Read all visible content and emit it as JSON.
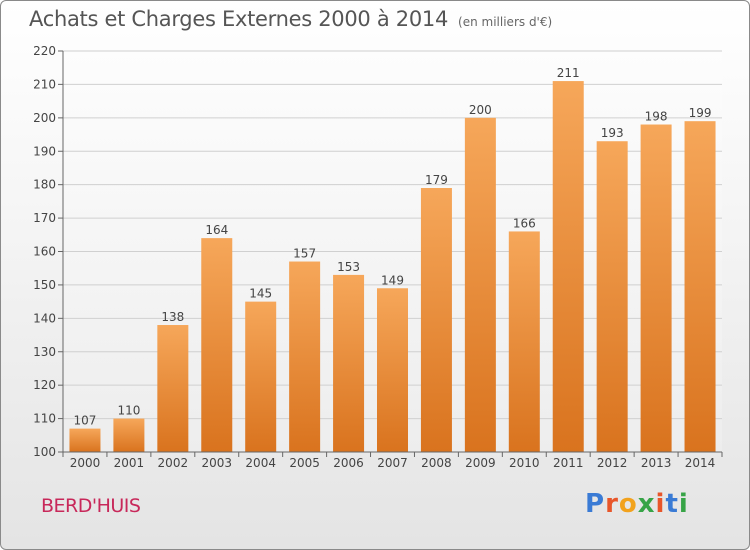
{
  "title": "Achats et Charges Externes 2000 à 2014",
  "unit": "(en milliers d'€)",
  "commune": "BERD'HUIS",
  "brand": "Proxiti",
  "brand_colors": [
    "#3a7bd5",
    "#e8562a",
    "#f2a21d",
    "#37a447",
    "#e8562a",
    "#3a7bd5",
    "#37a447"
  ],
  "chart_data": {
    "type": "bar",
    "categories": [
      "2000",
      "2001",
      "2002",
      "2003",
      "2004",
      "2005",
      "2006",
      "2007",
      "2008",
      "2009",
      "2010",
      "2011",
      "2012",
      "2013",
      "2014"
    ],
    "values": [
      107,
      110,
      138,
      164,
      145,
      157,
      153,
      149,
      179,
      200,
      166,
      211,
      193,
      198,
      199
    ],
    "ylim": [
      100,
      220
    ],
    "yticks": [
      100,
      110,
      120,
      130,
      140,
      150,
      160,
      170,
      180,
      190,
      200,
      210,
      220
    ],
    "grid": true,
    "bar_color_top": "#f6a75a",
    "bar_color_bottom": "#d9731e"
  }
}
